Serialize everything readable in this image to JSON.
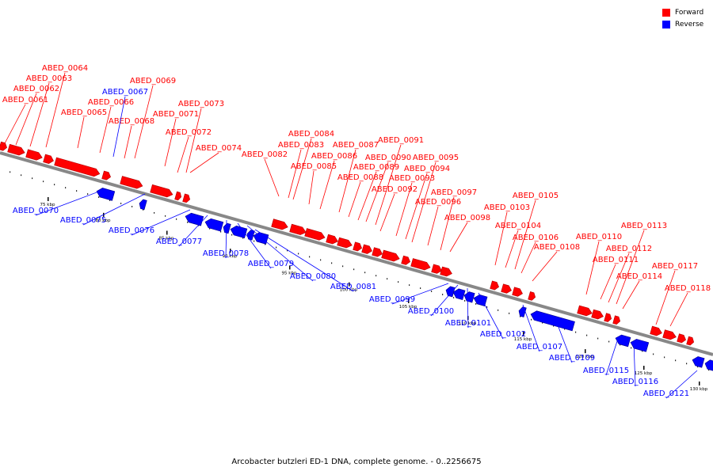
{
  "legend": {
    "forward_label": "Forward",
    "reverse_label": "Reverse",
    "forward_color": "#ff0000",
    "reverse_color": "#0000ff"
  },
  "caption": "Arcobacter butzleri ED-1 DNA, complete genome. - 0..2256675",
  "backbone_color": "#888888",
  "ticks": [
    "75 kbp",
    "80 kbp",
    "85 kbp",
    "90 kbp",
    "95 kbp",
    "100 kbp",
    "105 kbp",
    "110 kbp",
    "115 kbp",
    "120 kbp",
    "125 kbp",
    "130 kbp"
  ],
  "forward_genes": [
    "ABED_0061",
    "ABED_0062",
    "ABED_0063",
    "ABED_0064",
    "ABED_0065",
    "ABED_0066",
    "ABED_0068",
    "ABED_0069",
    "ABED_0071",
    "ABED_0072",
    "ABED_0073",
    "ABED_0074",
    "ABED_0082",
    "ABED_0083",
    "ABED_0084",
    "ABED_0085",
    "ABED_0086",
    "ABED_0087",
    "ABED_0088",
    "ABED_0089",
    "ABED_0090",
    "ABED_0091",
    "ABED_0092",
    "ABED_0093",
    "ABED_0094",
    "ABED_0095",
    "ABED_0096",
    "ABED_0097",
    "ABED_0098",
    "ABED_0103",
    "ABED_0104",
    "ABED_0105",
    "ABED_0106",
    "ABED_0108",
    "ABED_0110",
    "ABED_0111",
    "ABED_0112",
    "ABED_0113",
    "ABED_0114",
    "ABED_0117",
    "ABED_0118"
  ],
  "reverse_genes": [
    "ABED_0067",
    "ABED_0070",
    "ABED_0075",
    "ABED_0076",
    "ABED_0077",
    "ABED_0078",
    "ABED_0079",
    "ABED_0080",
    "ABED_0081",
    "ABED_0099",
    "ABED_0100",
    "ABED_0101",
    "ABED_0102",
    "ABED_0107",
    "ABED_0109",
    "ABED_0115",
    "ABED_0116",
    "ABED_0121"
  ]
}
